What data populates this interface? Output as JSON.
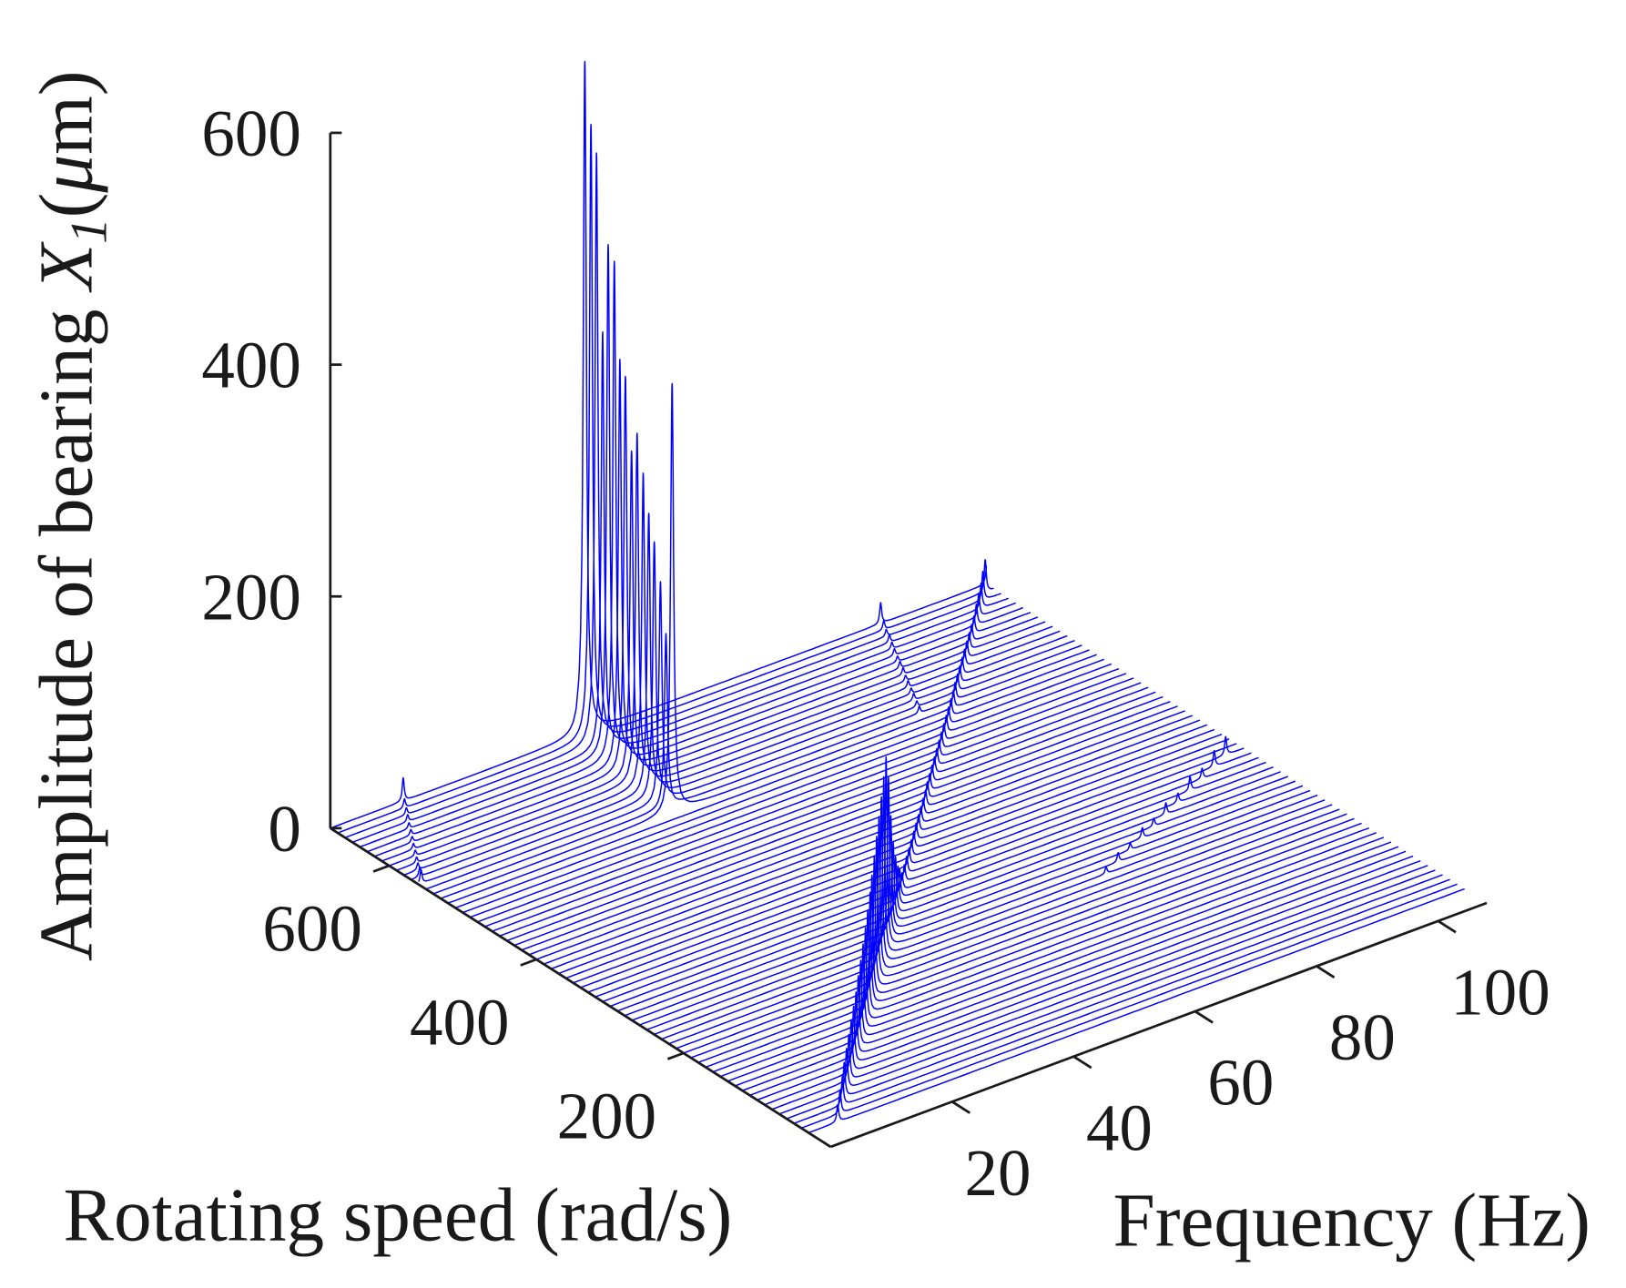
{
  "chart_data": {
    "type": "waterfall",
    "title": "",
    "xlabel": "Frequency (Hz)",
    "ylabel": "Rotating speed (rad/s)",
    "zlabel": {
      "prefix": "Amplitude of bearing ",
      "symbol": "X",
      "subscript": "1",
      "unit_open": "(",
      "unit_mu": "μ",
      "unit_rest": "m)"
    },
    "xlim": [
      0,
      108
    ],
    "ylim": [
      0,
      680
    ],
    "zlim": [
      0,
      600
    ],
    "xticks": [
      "20",
      "40",
      "60",
      "80",
      "100"
    ],
    "yticks": [
      "200",
      "400",
      "600"
    ],
    "zticks": [
      "0",
      "200",
      "400",
      "600"
    ],
    "grid": false,
    "line_color": "#0000ff",
    "speeds": [
      30,
      40,
      50,
      60,
      70,
      80,
      90,
      100,
      110,
      120,
      130,
      140,
      150,
      160,
      170,
      180,
      190,
      200,
      210,
      220,
      230,
      240,
      250,
      260,
      270,
      280,
      290,
      300,
      310,
      320,
      330,
      340,
      350,
      360,
      370,
      380,
      390,
      400,
      410,
      420,
      430,
      440,
      450,
      460,
      470,
      480,
      490,
      500,
      510,
      520,
      530,
      540,
      550,
      560,
      570,
      580,
      590,
      600,
      610,
      620,
      630,
      640,
      650,
      660,
      670,
      680
    ],
    "spectral_peaks": [
      {
        "speeds": [
          30,
          40,
          50,
          60,
          70,
          80,
          90,
          100,
          110,
          120,
          130,
          140,
          150,
          160,
          170,
          180,
          190,
          200,
          210,
          220,
          230,
          240,
          250,
          260,
          270,
          280,
          290,
          300,
          310,
          320,
          330,
          340,
          350,
          360,
          370,
          380,
          390,
          400,
          410,
          420,
          430,
          440,
          450,
          460,
          470,
          480,
          490,
          500,
          510,
          520,
          530,
          540,
          550,
          560,
          570,
          580,
          590,
          600,
          610,
          620,
          630,
          640,
          650,
          660,
          670,
          680
        ],
        "freqs": [
          4.8,
          6.4,
          8.0,
          9.5,
          11.1,
          12.7,
          14.3,
          15.9,
          17.5,
          19.1,
          20.7,
          22.3,
          23.9,
          25.5,
          27.1,
          28.6,
          30.2,
          31.8,
          33.4,
          35.0,
          36.6,
          38.2,
          39.8,
          41.4,
          43.0,
          44.6,
          46.2,
          47.7,
          49.3,
          50.9,
          52.5,
          54.1,
          55.7,
          57.3,
          58.9,
          60.5,
          62.1,
          63.7,
          65.3,
          66.8,
          68.4,
          70.0,
          71.6,
          73.2,
          74.8,
          76.4,
          78.0,
          79.6,
          81.2,
          82.8,
          84.4,
          85.9,
          87.5,
          89.1,
          90.7,
          92.3,
          93.9,
          95.5,
          97.1,
          98.7,
          100.3,
          101.9,
          103.5,
          105.0,
          106.6,
          108.2
        ],
        "amps": [
          15,
          20,
          25,
          30,
          35,
          40,
          45,
          50,
          55,
          62,
          68,
          75,
          82,
          90,
          98,
          106,
          115,
          125,
          135,
          145,
          155,
          165,
          140,
          100,
          70,
          50,
          35,
          25,
          15,
          15,
          15,
          15,
          15,
          15,
          15,
          15,
          15,
          15,
          15,
          15,
          15,
          15,
          15,
          15,
          15,
          15,
          15,
          15,
          15,
          15,
          15,
          15,
          15,
          15,
          15,
          15,
          15,
          15,
          15,
          15,
          18,
          20,
          22,
          25,
          28,
          32
        ]
      },
      {
        "speeds": [
          530,
          540,
          550,
          560,
          570,
          580,
          590,
          600,
          610,
          620,
          630,
          640,
          650,
          660,
          670,
          680
        ],
        "freqs": [
          38.1,
          38.3,
          38.6,
          38.8,
          39.1,
          39.4,
          39.6,
          39.9,
          40.1,
          40.4,
          40.7,
          40.9,
          41.2,
          41.4,
          41.7,
          41.9
        ],
        "amps": [
          370,
          150,
          190,
          220,
          240,
          270,
          300,
          280,
          340,
          350,
          430,
          440,
          360,
          510,
          530,
          580
        ]
      },
      {
        "speeds": [
          230,
          240,
          250,
          260,
          270,
          280,
          290,
          300,
          310,
          320,
          330
        ],
        "freqs": [
          73.2,
          76.4,
          79.6,
          82.8,
          85.9,
          89.1,
          92.3,
          95.5,
          98.7,
          101.9,
          105.0
        ],
        "amps": [
          6,
          8,
          6,
          9,
          7,
          10,
          8,
          12,
          9,
          14,
          16
        ]
      },
      {
        "speeds": [
          540,
          550,
          560,
          570,
          580,
          590,
          600,
          610,
          620,
          630,
          640,
          650,
          660,
          670,
          680
        ],
        "freqs": [
          80.0,
          80.8,
          81.5,
          82.3,
          83.0,
          83.8,
          84.6,
          85.3,
          86.1,
          86.8,
          87.6,
          88.4,
          89.1,
          89.9,
          90.6
        ],
        "amps": [
          6,
          5,
          6,
          5,
          6,
          5,
          6,
          6,
          5,
          6,
          6,
          7,
          6,
          8,
          18
        ]
      },
      {
        "speeds": [
          560,
          570,
          580,
          590,
          600,
          610,
          620,
          630,
          640,
          650,
          660,
          670,
          680
        ],
        "freqs": [
          0.4,
          1.4,
          2.3,
          3.3,
          4.3,
          5.2,
          6.2,
          7.2,
          8.1,
          9.1,
          10.1,
          11.0,
          12.0
        ],
        "amps": [
          12,
          8,
          6,
          5,
          5,
          5,
          5,
          5,
          5,
          6,
          6,
          8,
          20
        ]
      }
    ]
  }
}
